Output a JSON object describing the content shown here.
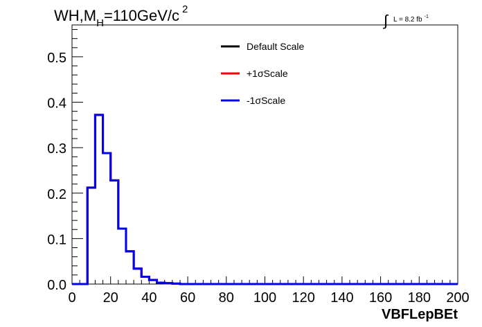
{
  "title": {
    "prefix": "WH,M",
    "subscript": "H",
    "main": "=110GeV/c",
    "superscript": "2"
  },
  "luminosity": {
    "integral_symbol": "∫",
    "text": "L = 8.2 fb",
    "superscript": "-1"
  },
  "chart_data": {
    "type": "line",
    "style": "step-histogram",
    "xlabel": "VBFLepBEt",
    "ylabel": "",
    "xlim": [
      0,
      200
    ],
    "ylim": [
      0,
      0.57
    ],
    "x_ticks": [
      "0",
      "20",
      "40",
      "60",
      "80",
      "100",
      "120",
      "140",
      "160",
      "180",
      "200"
    ],
    "y_ticks": [
      "0.0",
      "0.1",
      "0.2",
      "0.3",
      "0.4",
      "0.5"
    ],
    "grid": false,
    "legend_position": "top-center",
    "bin_edges": [
      0,
      4,
      8,
      12,
      16,
      20,
      24,
      28,
      32,
      36,
      40,
      44,
      48,
      52,
      56,
      60,
      64,
      68,
      72,
      76,
      80,
      84,
      88,
      92,
      96,
      100,
      104,
      108,
      112,
      116,
      120,
      124,
      128,
      132,
      136,
      140,
      144,
      148,
      152,
      156,
      160,
      164,
      168,
      172,
      176,
      180,
      184,
      188,
      192,
      196,
      200
    ],
    "series": [
      {
        "name": "Default Scale",
        "color": "#000000",
        "values": [
          0,
          0,
          0.212,
          0.372,
          0.288,
          0.228,
          0.122,
          0.072,
          0.034,
          0.016,
          0.009,
          0.003,
          0.002,
          0.001,
          0,
          0,
          0,
          0,
          0,
          0,
          0,
          0,
          0,
          0,
          0,
          0,
          0,
          0,
          0,
          0,
          0,
          0,
          0,
          0,
          0,
          0,
          0,
          0,
          0,
          0,
          0,
          0,
          0,
          0,
          0,
          0,
          0,
          0,
          0,
          0
        ]
      },
      {
        "name": "+1σScale",
        "color": "#ff0000",
        "values": [
          0,
          0,
          0.212,
          0.372,
          0.288,
          0.228,
          0.122,
          0.072,
          0.034,
          0.016,
          0.009,
          0.003,
          0.002,
          0.001,
          0,
          0,
          0,
          0,
          0,
          0,
          0,
          0,
          0,
          0,
          0,
          0,
          0,
          0,
          0,
          0,
          0,
          0,
          0,
          0,
          0,
          0,
          0,
          0,
          0,
          0,
          0,
          0,
          0,
          0,
          0,
          0,
          0,
          0,
          0,
          0
        ]
      },
      {
        "name": "-1σScale",
        "color": "#0000ee",
        "values": [
          0,
          0,
          0.212,
          0.372,
          0.288,
          0.228,
          0.122,
          0.072,
          0.034,
          0.016,
          0.009,
          0.003,
          0.002,
          0.001,
          0,
          0,
          0,
          0,
          0,
          0,
          0,
          0,
          0,
          0,
          0,
          0,
          0,
          0,
          0,
          0,
          0,
          0,
          0,
          0,
          0,
          0,
          0,
          0,
          0,
          0,
          0,
          0,
          0,
          0,
          0,
          0,
          0,
          0,
          0,
          0
        ]
      }
    ]
  }
}
